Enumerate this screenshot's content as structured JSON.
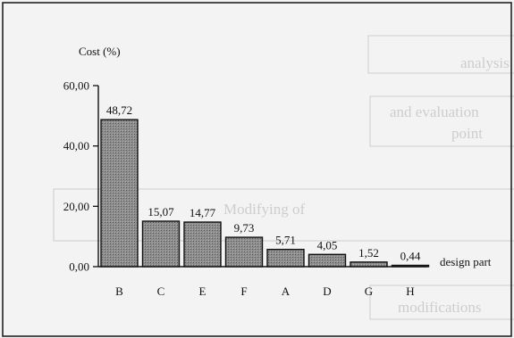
{
  "chart_data": {
    "type": "bar",
    "ylabel": "Cost (%)",
    "xlabel": "design part",
    "categories": [
      "B",
      "C",
      "E",
      "F",
      "A",
      "D",
      "G",
      "H"
    ],
    "values": [
      48.72,
      15.07,
      14.77,
      9.73,
      5.71,
      4.05,
      1.52,
      0.44
    ],
    "value_labels": [
      "48,72",
      "15,07",
      "14,77",
      "9,73",
      "5,71",
      "4,05",
      "1,52",
      "0,44"
    ],
    "ylim": [
      0,
      60
    ],
    "yticks": [
      0,
      20,
      40,
      60
    ],
    "ytick_labels": [
      "0,00",
      "20,00",
      "40,00",
      "60,00"
    ],
    "grid": false,
    "bar_fill": "#8a8a8a",
    "bar_stroke": "#111111"
  },
  "background_text": [
    "analysis",
    "and evaluation",
    "point",
    "Modifying of",
    "modifications"
  ]
}
